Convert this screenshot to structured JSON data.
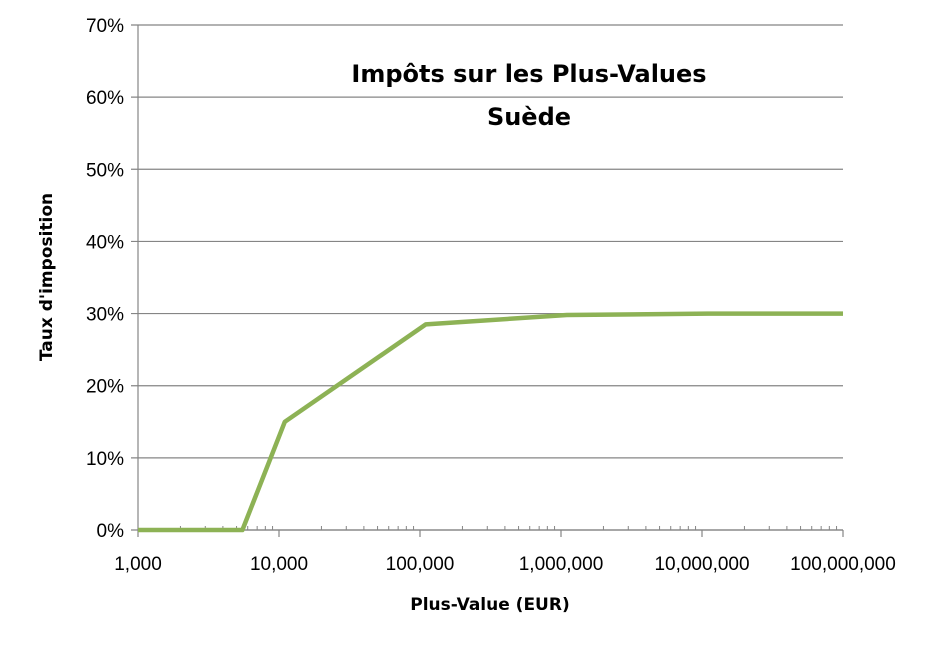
{
  "chart_data": {
    "type": "line",
    "title": "Impôts sur les Plus-Values",
    "subtitle": "Suède",
    "xlabel": "Plus-Value (EUR)",
    "ylabel": "Taux d'imposition",
    "x_scale": "log",
    "xlim": [
      1000,
      100000000
    ],
    "ylim": [
      0,
      0.7
    ],
    "x_ticks": [
      1000,
      10000,
      100000,
      1000000,
      10000000,
      100000000
    ],
    "x_tick_labels": [
      "1,000",
      "10,000",
      "100,000",
      "1,000,000",
      "10,000,000",
      "100,000,000"
    ],
    "y_ticks": [
      0,
      0.1,
      0.2,
      0.3,
      0.4,
      0.5,
      0.6,
      0.7
    ],
    "y_tick_labels": [
      "0%",
      "10%",
      "20%",
      "30%",
      "40%",
      "50%",
      "60%",
      "70%"
    ],
    "grid": true,
    "legend": "none",
    "series": [
      {
        "color": "#8db255",
        "x": [
          1000,
          5500,
          11000,
          110000,
          1100000,
          11000000,
          100000000
        ],
        "y": [
          0,
          0,
          0.15,
          0.285,
          0.298,
          0.3,
          0.3
        ]
      }
    ]
  }
}
